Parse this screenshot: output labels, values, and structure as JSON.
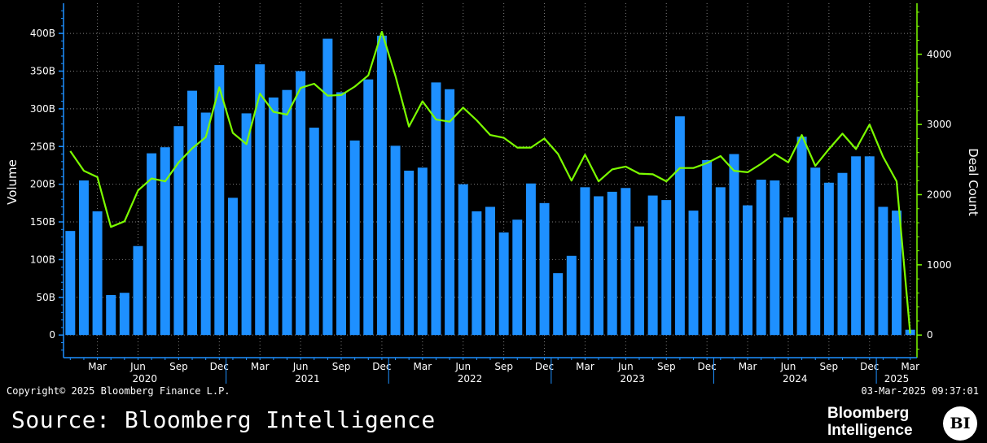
{
  "chart_data": {
    "type": "bar",
    "title": "",
    "ylabel": "Volume",
    "y2label": "Deal Count",
    "ylim": [
      -30,
      440
    ],
    "y2lim": [
      -322,
      4727
    ],
    "y_ticks": [
      "0",
      "50B",
      "100B",
      "150B",
      "200B",
      "250B",
      "300B",
      "350B",
      "400B"
    ],
    "y_tick_values": [
      0,
      50,
      100,
      150,
      200,
      250,
      300,
      350,
      400
    ],
    "y2_ticks": [
      "0",
      "1000",
      "2000",
      "3000",
      "4000"
    ],
    "y2_tick_values": [
      0,
      1000,
      2000,
      3000,
      4000
    ],
    "month_ticks": [
      {
        "label": "Mar",
        "index": 2
      },
      {
        "label": "Jun",
        "index": 5
      },
      {
        "label": "Sep",
        "index": 8
      },
      {
        "label": "Dec",
        "index": 11
      },
      {
        "label": "Mar",
        "index": 14
      },
      {
        "label": "Jun",
        "index": 17
      },
      {
        "label": "Sep",
        "index": 20
      },
      {
        "label": "Dec",
        "index": 23
      },
      {
        "label": "Mar",
        "index": 26
      },
      {
        "label": "Jun",
        "index": 29
      },
      {
        "label": "Sep",
        "index": 32
      },
      {
        "label": "Dec",
        "index": 35
      },
      {
        "label": "Mar",
        "index": 38
      },
      {
        "label": "Jun",
        "index": 41
      },
      {
        "label": "Sep",
        "index": 44
      },
      {
        "label": "Dec",
        "index": 47
      },
      {
        "label": "Mar",
        "index": 50
      },
      {
        "label": "Jun",
        "index": 53
      },
      {
        "label": "Sep",
        "index": 56
      },
      {
        "label": "Dec",
        "index": 59
      },
      {
        "label": "Mar",
        "index": 62
      }
    ],
    "year_labels": [
      {
        "label": "2020",
        "start": 0,
        "end": 11
      },
      {
        "label": "2021",
        "start": 12,
        "end": 23
      },
      {
        "label": "2022",
        "start": 24,
        "end": 35
      },
      {
        "label": "2023",
        "start": 36,
        "end": 47
      },
      {
        "label": "2024",
        "start": 48,
        "end": 59
      },
      {
        "label": "2025",
        "start": 60,
        "end": 62
      }
    ],
    "categories": [
      "Jan 2020",
      "Feb 2020",
      "Mar 2020",
      "Apr 2020",
      "May 2020",
      "Jun 2020",
      "Jul 2020",
      "Aug 2020",
      "Sep 2020",
      "Oct 2020",
      "Nov 2020",
      "Dec 2020",
      "Jan 2021",
      "Feb 2021",
      "Mar 2021",
      "Apr 2021",
      "May 2021",
      "Jun 2021",
      "Jul 2021",
      "Aug 2021",
      "Sep 2021",
      "Oct 2021",
      "Nov 2021",
      "Dec 2021",
      "Jan 2022",
      "Feb 2022",
      "Mar 2022",
      "Apr 2022",
      "May 2022",
      "Jun 2022",
      "Jul 2022",
      "Aug 2022",
      "Sep 2022",
      "Oct 2022",
      "Nov 2022",
      "Dec 2022",
      "Jan 2023",
      "Feb 2023",
      "Mar 2023",
      "Apr 2023",
      "May 2023",
      "Jun 2023",
      "Jul 2023",
      "Aug 2023",
      "Sep 2023",
      "Oct 2023",
      "Nov 2023",
      "Dec 2023",
      "Jan 2024",
      "Feb 2024",
      "Mar 2024",
      "Apr 2024",
      "May 2024",
      "Jun 2024",
      "Jul 2024",
      "Aug 2024",
      "Sep 2024",
      "Oct 2024",
      "Nov 2024",
      "Dec 2024",
      "Jan 2025",
      "Feb 2025",
      "Mar 2025"
    ],
    "series": [
      {
        "type": "bar",
        "axis": "left",
        "color": "#1e90ff",
        "values": [
          138,
          205,
          164,
          53,
          56,
          118,
          241,
          249,
          277,
          324,
          295,
          358,
          182,
          294,
          359,
          315,
          325,
          350,
          275,
          393,
          322,
          258,
          339,
          397,
          251,
          218,
          222,
          335,
          326,
          200,
          164,
          170,
          136,
          153,
          201,
          175,
          82,
          105,
          196,
          184,
          190,
          195,
          144,
          185,
          179,
          290,
          165,
          232,
          196,
          240,
          172,
          206,
          205,
          156,
          263,
          222,
          202,
          215,
          237,
          237,
          170,
          165,
          7
        ]
      },
      {
        "type": "line",
        "axis": "right",
        "color": "#7cfc00",
        "values": [
          2620,
          2340,
          2250,
          1540,
          1620,
          2060,
          2230,
          2190,
          2460,
          2660,
          2820,
          3530,
          2880,
          2720,
          3440,
          3180,
          3140,
          3520,
          3580,
          3410,
          3420,
          3540,
          3700,
          4320,
          3690,
          2970,
          3330,
          3070,
          3040,
          3240,
          3060,
          2850,
          2810,
          2670,
          2670,
          2800,
          2580,
          2200,
          2570,
          2190,
          2360,
          2400,
          2300,
          2290,
          2190,
          2380,
          2380,
          2450,
          2550,
          2340,
          2320,
          2440,
          2580,
          2460,
          2850,
          2410,
          2650,
          2870,
          2650,
          3000,
          2540,
          2190,
          20
        ]
      }
    ]
  },
  "footer": {
    "copyright": "Copyright© 2025 Bloomberg Finance L.P.",
    "timestamp": "03-Mar-2025 09:37:01",
    "source": "Source: Bloomberg Intelligence",
    "brand_line1": "Bloomberg",
    "brand_line2": "Intelligence",
    "badge": "BI"
  },
  "colors": {
    "background": "#000000",
    "axis": "#1e90ff",
    "right_axis": "#7cfc00",
    "grid": "#7f7f7f",
    "text": "#ffffff"
  }
}
